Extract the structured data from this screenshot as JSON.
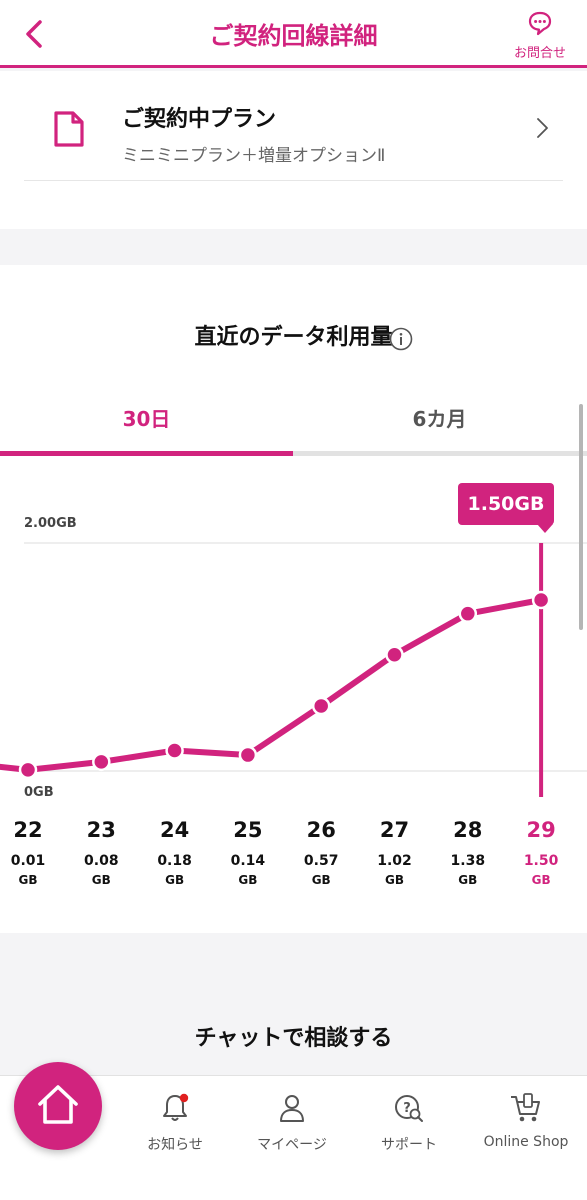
{
  "header": {
    "title": "ご契約回線詳細",
    "inquiry_label": "お問合せ"
  },
  "plan": {
    "title": "ご契約中プラン",
    "name": "ミニミニプラン＋増量オプションⅡ"
  },
  "usage": {
    "title": "直近のデータ利用量",
    "tabs": [
      "30日",
      "6カ月"
    ],
    "selected_tab": "30日",
    "tooltip": "1.50GB"
  },
  "chart_data": {
    "type": "line",
    "x": [
      22,
      23,
      24,
      25,
      26,
      27,
      28,
      29
    ],
    "categories": [
      "22",
      "23",
      "24",
      "25",
      "26",
      "27",
      "28",
      "29"
    ],
    "values": [
      0.01,
      0.08,
      0.18,
      0.14,
      0.57,
      1.02,
      1.38,
      1.5
    ],
    "value_labels": [
      "0.01",
      "0.08",
      "0.18",
      "0.14",
      "0.57",
      "1.02",
      "1.38",
      "1.50"
    ],
    "unit": "GB",
    "ytick_labels": [
      "2.00GB",
      "0GB"
    ],
    "ylim": [
      0,
      2.0
    ],
    "selected_index": 7,
    "colors": {
      "line": "#d1237e",
      "selected": "#d1237e",
      "text": "#111111"
    }
  },
  "chat": {
    "title": "チャットで相談する"
  },
  "nav": {
    "items": [
      {
        "label": "お知らせ",
        "icon": "bell-icon"
      },
      {
        "label": "マイページ",
        "icon": "person-icon"
      },
      {
        "label": "サポート",
        "icon": "support-icon"
      },
      {
        "label": "Online Shop",
        "icon": "cart-icon"
      }
    ],
    "home_icon": "home-icon"
  },
  "colors": {
    "accent": "#d1237e",
    "badge": "#e02020"
  }
}
